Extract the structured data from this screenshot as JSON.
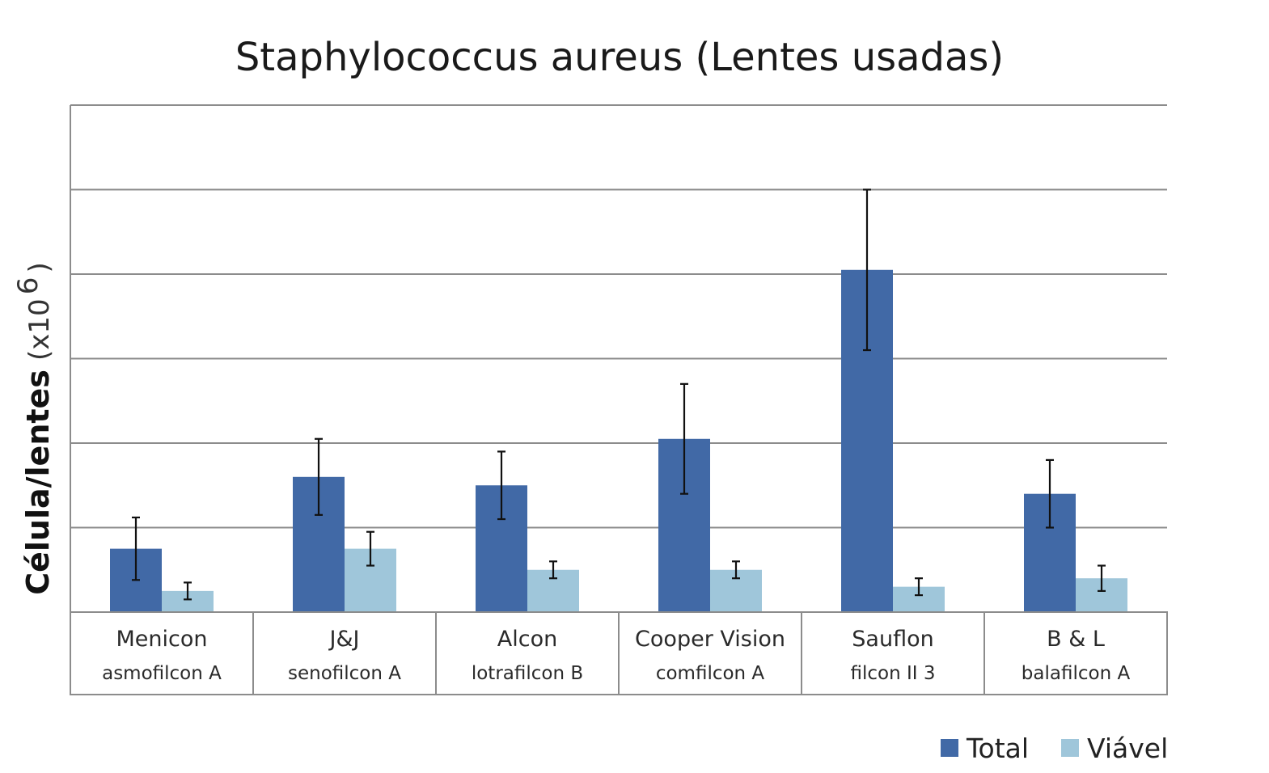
{
  "chart_data": {
    "type": "bar",
    "title": "Staphylococcus aureus (Lentes usadas)",
    "ylabel": "Célula/lentes",
    "ylabel_unit_prefix": "(x10",
    "ylabel_unit_exponent": "6",
    "ylabel_unit_suffix": ")",
    "xlabel": "",
    "ylim": [
      0,
      6
    ],
    "y_gridlines": [
      1,
      2,
      3,
      4,
      5,
      6
    ],
    "y_tick_labels_shown": false,
    "grid": true,
    "legend_position": "bottom-right",
    "categories": [
      {
        "name": "Menicon",
        "material": "asmofilcon A"
      },
      {
        "name": "J&J",
        "material": "senofilcon A"
      },
      {
        "name": "Alcon",
        "material": "lotrafilcon B"
      },
      {
        "name": "Cooper Vision",
        "material": "comfilcon A"
      },
      {
        "name": "Sauflon",
        "material": "filcon II 3"
      },
      {
        "name": "B & L",
        "material": "balafilcon A"
      }
    ],
    "series": [
      {
        "name": "Total",
        "color": "#4169a6",
        "values": [
          0.75,
          1.6,
          1.5,
          2.05,
          4.05,
          1.4
        ],
        "error": [
          0.37,
          0.45,
          0.4,
          0.65,
          0.95,
          0.4
        ]
      },
      {
        "name": "Viável",
        "color": "#9fc6da",
        "values": [
          0.25,
          0.75,
          0.5,
          0.5,
          0.3,
          0.4
        ],
        "error": [
          0.1,
          0.2,
          0.1,
          0.1,
          0.1,
          0.15
        ]
      }
    ]
  }
}
